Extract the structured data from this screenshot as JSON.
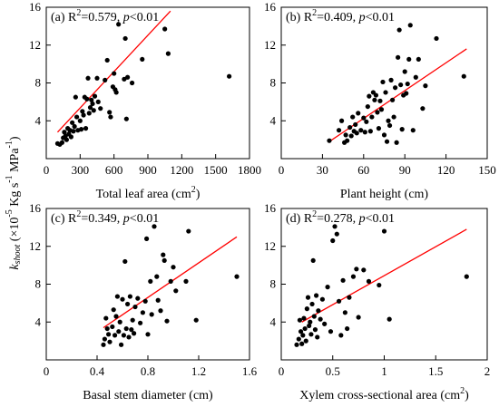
{
  "y_axis_shared": {
    "base": "k",
    "sub": "shoot",
    "rest": " (×10",
    "exp1": "-5",
    "mid": " Kg s",
    "exp2": "-1",
    "mid2": " MPa",
    "exp3": "-1",
    "end": ")"
  },
  "chart_data": [
    {
      "type": "scatter",
      "annotation": {
        "tag": "(a)",
        "r2": "0.579",
        "p": "p<0.01"
      },
      "xlabel": {
        "text": "Total leaf area (cm",
        "sup": "2",
        "close": ")"
      },
      "xlim": [
        0,
        1800
      ],
      "ylim": [
        0,
        16
      ],
      "xticks": [
        0,
        300,
        600,
        900,
        1200,
        1500,
        1800
      ],
      "yticks": [
        4,
        8,
        12,
        16
      ],
      "grid": false,
      "fit_line": {
        "x": [
          100,
          1100
        ],
        "y": [
          2.8,
          15.6
        ],
        "color": "#ff0000"
      },
      "points": [
        [
          100,
          1.6
        ],
        [
          120,
          1.5
        ],
        [
          140,
          1.7
        ],
        [
          150,
          2.2
        ],
        [
          160,
          2.8
        ],
        [
          170,
          2.4
        ],
        [
          180,
          2.0
        ],
        [
          190,
          3.2
        ],
        [
          200,
          2.6
        ],
        [
          210,
          3.0
        ],
        [
          220,
          2.3
        ],
        [
          230,
          3.8
        ],
        [
          240,
          2.9
        ],
        [
          250,
          3.4
        ],
        [
          260,
          6.5
        ],
        [
          270,
          4.4
        ],
        [
          280,
          3.0
        ],
        [
          300,
          4.0
        ],
        [
          310,
          3.1
        ],
        [
          320,
          5.0
        ],
        [
          330,
          4.6
        ],
        [
          340,
          6.5
        ],
        [
          350,
          3.2
        ],
        [
          360,
          6.3
        ],
        [
          370,
          8.5
        ],
        [
          380,
          4.8
        ],
        [
          390,
          5.4
        ],
        [
          400,
          6.2
        ],
        [
          410,
          5.8
        ],
        [
          420,
          5.1
        ],
        [
          430,
          6.6
        ],
        [
          450,
          8.5
        ],
        [
          460,
          6.0
        ],
        [
          480,
          5.3
        ],
        [
          520,
          8.3
        ],
        [
          540,
          10.4
        ],
        [
          560,
          4.9
        ],
        [
          570,
          4.4
        ],
        [
          590,
          7.6
        ],
        [
          600,
          9.0
        ],
        [
          610,
          7.3
        ],
        [
          620,
          7.0
        ],
        [
          640,
          14.2
        ],
        [
          690,
          8.4
        ],
        [
          700,
          12.7
        ],
        [
          710,
          4.2
        ],
        [
          720,
          8.6
        ],
        [
          760,
          8.0
        ],
        [
          850,
          10.5
        ],
        [
          1050,
          13.7
        ],
        [
          1080,
          11.1
        ],
        [
          1620,
          8.7
        ]
      ]
    },
    {
      "type": "scatter",
      "annotation": {
        "tag": "(b)",
        "r2": "0.409",
        "p": "p<0.01"
      },
      "xlabel": {
        "text": "Plant height (cm)",
        "sup": "",
        "close": ""
      },
      "xlim": [
        0,
        150
      ],
      "ylim": [
        0,
        16
      ],
      "xticks": [
        0,
        30,
        60,
        90,
        120,
        150
      ],
      "yticks": [
        4,
        8,
        12,
        16
      ],
      "grid": false,
      "fit_line": {
        "x": [
          35,
          135
        ],
        "y": [
          1.8,
          11.6
        ],
        "color": "#ff0000"
      },
      "points": [
        [
          35,
          1.9
        ],
        [
          42,
          3.0
        ],
        [
          44,
          4.0
        ],
        [
          46,
          1.7
        ],
        [
          47,
          2.5
        ],
        [
          48,
          1.9
        ],
        [
          50,
          3.3
        ],
        [
          51,
          2.4
        ],
        [
          52,
          4.4
        ],
        [
          53,
          2.9
        ],
        [
          54,
          3.6
        ],
        [
          55,
          2.7
        ],
        [
          56,
          4.8
        ],
        [
          58,
          3.0
        ],
        [
          60,
          4.3
        ],
        [
          61,
          2.8
        ],
        [
          62,
          3.9
        ],
        [
          63,
          5.5
        ],
        [
          64,
          6.6
        ],
        [
          65,
          2.9
        ],
        [
          66,
          4.4
        ],
        [
          67,
          7.0
        ],
        [
          68,
          6.2
        ],
        [
          69,
          6.7
        ],
        [
          70,
          4.9
        ],
        [
          71,
          3.2
        ],
        [
          72,
          6.1
        ],
        [
          73,
          5.2
        ],
        [
          74,
          8.1
        ],
        [
          75,
          2.5
        ],
        [
          76,
          7.0
        ],
        [
          77,
          1.8
        ],
        [
          78,
          4.0
        ],
        [
          79,
          3.5
        ],
        [
          80,
          8.3
        ],
        [
          81,
          6.2
        ],
        [
          82,
          4.4
        ],
        [
          83,
          7.5
        ],
        [
          84,
          1.7
        ],
        [
          85,
          10.7
        ],
        [
          86,
          13.6
        ],
        [
          87,
          7.8
        ],
        [
          88,
          3.1
        ],
        [
          89,
          6.7
        ],
        [
          90,
          9.2
        ],
        [
          91,
          6.9
        ],
        [
          92,
          7.9
        ],
        [
          93,
          10.5
        ],
        [
          94,
          14.1
        ],
        [
          96,
          3.0
        ],
        [
          98,
          8.6
        ],
        [
          100,
          10.5
        ],
        [
          103,
          5.3
        ],
        [
          105,
          7.7
        ],
        [
          113,
          12.7
        ],
        [
          133,
          8.7
        ]
      ]
    },
    {
      "type": "scatter",
      "annotation": {
        "tag": "(c)",
        "r2": "0.349",
        "p": "p<0.01"
      },
      "xlabel": {
        "text": "Basal stem diameter (cm)",
        "sup": "",
        "close": ""
      },
      "xlim": [
        0,
        1.6
      ],
      "ylim": [
        0,
        16
      ],
      "xticks": [
        0,
        0.4,
        0.8,
        1.2,
        1.6
      ],
      "yticks": [
        4,
        8,
        12,
        16
      ],
      "grid": false,
      "fit_line": {
        "x": [
          0.45,
          1.5
        ],
        "y": [
          3.4,
          13.0
        ],
        "color": "#ff0000"
      },
      "points": [
        [
          0.45,
          1.6
        ],
        [
          0.46,
          2.2
        ],
        [
          0.47,
          4.4
        ],
        [
          0.48,
          3.3
        ],
        [
          0.49,
          2.7
        ],
        [
          0.5,
          1.9
        ],
        [
          0.52,
          3.5
        ],
        [
          0.53,
          5.3
        ],
        [
          0.54,
          2.6
        ],
        [
          0.55,
          4.6
        ],
        [
          0.56,
          6.7
        ],
        [
          0.57,
          3.0
        ],
        [
          0.58,
          4.0
        ],
        [
          0.59,
          1.6
        ],
        [
          0.6,
          6.4
        ],
        [
          0.61,
          2.6
        ],
        [
          0.62,
          10.4
        ],
        [
          0.63,
          3.3
        ],
        [
          0.64,
          5.9
        ],
        [
          0.65,
          2.4
        ],
        [
          0.66,
          6.7
        ],
        [
          0.67,
          3.2
        ],
        [
          0.68,
          4.2
        ],
        [
          0.69,
          2.8
        ],
        [
          0.7,
          5.6
        ],
        [
          0.72,
          6.5
        ],
        [
          0.74,
          3.9
        ],
        [
          0.76,
          5.0
        ],
        [
          0.78,
          6.2
        ],
        [
          0.79,
          12.8
        ],
        [
          0.8,
          2.7
        ],
        [
          0.82,
          8.3
        ],
        [
          0.83,
          4.8
        ],
        [
          0.85,
          14.1
        ],
        [
          0.87,
          8.8
        ],
        [
          0.88,
          6.3
        ],
        [
          0.9,
          5.2
        ],
        [
          0.92,
          11.1
        ],
        [
          0.93,
          10.5
        ],
        [
          0.95,
          4.1
        ],
        [
          0.98,
          8.3
        ],
        [
          1.0,
          9.8
        ],
        [
          1.02,
          7.3
        ],
        [
          1.1,
          8.3
        ],
        [
          1.12,
          13.6
        ],
        [
          1.18,
          4.2
        ],
        [
          1.5,
          8.8
        ]
      ]
    },
    {
      "type": "scatter",
      "annotation": {
        "tag": "(d)",
        "r2": "0.278",
        "p": "p<0.01"
      },
      "xlabel": {
        "text": "Xylem cross-sectional area (cm",
        "sup": "2",
        "close": ")"
      },
      "xlim": [
        0,
        2
      ],
      "ylim": [
        0,
        16
      ],
      "xticks": [
        0,
        0.5,
        1,
        1.5,
        2
      ],
      "yticks": [
        4,
        8,
        12,
        16
      ],
      "grid": false,
      "fit_line": {
        "x": [
          0.2,
          1.8
        ],
        "y": [
          4.0,
          13.8
        ],
        "color": "#ff0000"
      },
      "points": [
        [
          0.15,
          1.6
        ],
        [
          0.17,
          2.2
        ],
        [
          0.18,
          4.2
        ],
        [
          0.19,
          3.0
        ],
        [
          0.2,
          1.7
        ],
        [
          0.21,
          2.6
        ],
        [
          0.22,
          4.4
        ],
        [
          0.23,
          3.3
        ],
        [
          0.24,
          2.0
        ],
        [
          0.25,
          5.4
        ],
        [
          0.26,
          6.6
        ],
        [
          0.27,
          3.6
        ],
        [
          0.28,
          4.0
        ],
        [
          0.29,
          2.7
        ],
        [
          0.3,
          5.9
        ],
        [
          0.31,
          10.5
        ],
        [
          0.32,
          4.6
        ],
        [
          0.33,
          3.2
        ],
        [
          0.34,
          6.8
        ],
        [
          0.35,
          2.4
        ],
        [
          0.36,
          5.2
        ],
        [
          0.38,
          4.3
        ],
        [
          0.4,
          6.4
        ],
        [
          0.42,
          3.8
        ],
        [
          0.45,
          7.7
        ],
        [
          0.48,
          3.0
        ],
        [
          0.5,
          12.6
        ],
        [
          0.52,
          14.1
        ],
        [
          0.54,
          13.3
        ],
        [
          0.56,
          6.2
        ],
        [
          0.58,
          2.6
        ],
        [
          0.6,
          8.4
        ],
        [
          0.62,
          5.0
        ],
        [
          0.64,
          3.3
        ],
        [
          0.66,
          6.6
        ],
        [
          0.7,
          8.8
        ],
        [
          0.73,
          9.6
        ],
        [
          0.75,
          4.5
        ],
        [
          0.8,
          9.5
        ],
        [
          0.85,
          8.3
        ],
        [
          0.95,
          7.9
        ],
        [
          1.0,
          13.6
        ],
        [
          1.05,
          4.3
        ],
        [
          1.8,
          8.8
        ]
      ]
    }
  ]
}
